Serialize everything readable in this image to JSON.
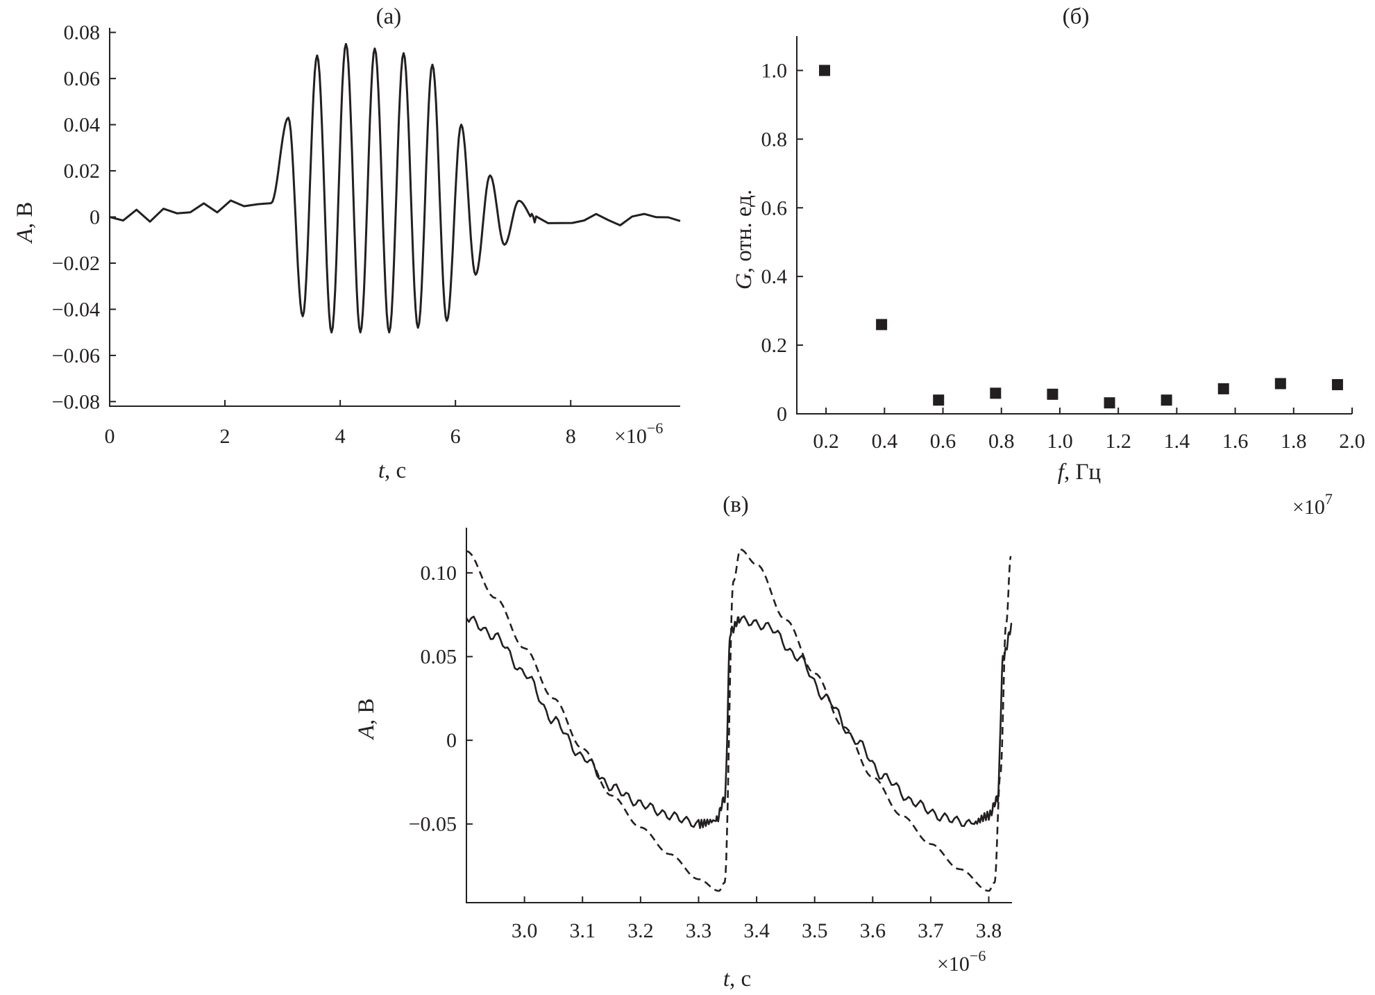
{
  "chart_data": [
    {
      "type": "line",
      "panel": "(a)",
      "title": "(a)",
      "xlabel_italic": "t",
      "xlabel_rest": ", с",
      "ylabel_italic": "A",
      "ylabel_rest": ", В",
      "x_multiplier": "×10",
      "x_multiplier_exp": "−6",
      "xlim": [
        0,
        9.9
      ],
      "ylim": [
        -0.082,
        0.082
      ],
      "x_ticks": [
        0,
        2,
        4,
        6,
        8
      ],
      "x_tick_labels": [
        "0",
        "2",
        "4",
        "6",
        "8"
      ],
      "y_ticks": [
        -0.08,
        -0.06,
        -0.04,
        -0.02,
        0,
        0.02,
        0.04,
        0.06,
        0.08
      ],
      "y_tick_labels": [
        "−0.08",
        "−0.06",
        "−0.04",
        "−0.02",
        "0",
        "0.02",
        "0.04",
        "0.06",
        "0.08"
      ],
      "series": [
        {
          "style": "solid",
          "x": [
            0.0,
            2.8,
            3.1,
            3.35,
            3.6,
            3.85,
            4.1,
            4.35,
            4.6,
            4.85,
            5.1,
            5.35,
            5.6,
            5.85,
            6.1,
            6.35,
            6.6,
            6.85,
            7.1,
            7.4,
            9.9
          ],
          "y": [
            0.0,
            0.006,
            0.043,
            -0.043,
            0.07,
            -0.05,
            0.075,
            -0.05,
            0.073,
            -0.05,
            0.071,
            -0.048,
            0.066,
            -0.045,
            0.04,
            -0.025,
            0.018,
            -0.012,
            0.007,
            -0.002,
            0.0
          ]
        }
      ]
    },
    {
      "type": "scatter",
      "panel": "(б)",
      "title": "(б)",
      "xlabel_italic": "f",
      "xlabel_rest": ", Гц",
      "ylabel_italic": "G",
      "ylabel_rest": ", отн. ед.",
      "x_multiplier": "×10",
      "x_multiplier_exp": "7",
      "xlim": [
        0.1,
        2.0
      ],
      "ylim": [
        0,
        1.1
      ],
      "x_ticks": [
        0.2,
        0.4,
        0.6,
        0.8,
        1.0,
        1.2,
        1.4,
        1.6,
        1.8,
        2.0
      ],
      "x_tick_labels": [
        "0.2",
        "0.4",
        "0.6",
        "0.8",
        "1.0",
        "1.2",
        "1.4",
        "1.6",
        "1.8",
        "2.0"
      ],
      "y_ticks": [
        0,
        0.2,
        0.4,
        0.6,
        0.8,
        1.0
      ],
      "y_tick_labels": [
        "0",
        "0.2",
        "0.4",
        "0.6",
        "0.8",
        "1.0"
      ],
      "series": [
        {
          "style": "square-marker",
          "x": [
            0.195,
            0.39,
            0.585,
            0.78,
            0.975,
            1.17,
            1.365,
            1.56,
            1.755,
            1.95
          ],
          "y": [
            1.0,
            0.26,
            0.04,
            0.06,
            0.057,
            0.032,
            0.04,
            0.073,
            0.088,
            0.085
          ]
        }
      ]
    },
    {
      "type": "line",
      "panel": "(в)",
      "title": "(в)",
      "xlabel_italic": "t",
      "xlabel_rest": ", с",
      "ylabel_italic": "A",
      "ylabel_rest": ", В",
      "x_multiplier": "×10",
      "x_multiplier_exp": "−6",
      "xlim": [
        2.9,
        3.84
      ],
      "ylim": [
        -0.097,
        0.127
      ],
      "x_ticks": [
        3.0,
        3.1,
        3.2,
        3.3,
        3.4,
        3.5,
        3.6,
        3.7,
        3.8
      ],
      "x_tick_labels": [
        "3.0",
        "3.1",
        "3.2",
        "3.3",
        "3.4",
        "3.5",
        "3.6",
        "3.7",
        "3.8"
      ],
      "y_ticks": [
        -0.05,
        0,
        0.05,
        0.1
      ],
      "y_tick_labels": [
        "−0.05",
        "0",
        "0.05",
        "0.10"
      ],
      "series": [
        {
          "style": "solid",
          "x": [
            2.9,
            2.95,
            3.0,
            3.05,
            3.1,
            3.15,
            3.2,
            3.25,
            3.3,
            3.33,
            3.345,
            3.355,
            3.37,
            3.42,
            3.47,
            3.52,
            3.57,
            3.62,
            3.67,
            3.72,
            3.77,
            3.8,
            3.815,
            3.825,
            3.84
          ],
          "y": [
            0.073,
            0.062,
            0.04,
            0.012,
            -0.01,
            -0.028,
            -0.038,
            -0.045,
            -0.05,
            -0.048,
            -0.035,
            0.065,
            0.072,
            0.068,
            0.05,
            0.025,
            0.0,
            -0.022,
            -0.037,
            -0.046,
            -0.05,
            -0.045,
            -0.035,
            0.05,
            0.068
          ]
        },
        {
          "style": "dashed",
          "x": [
            2.9,
            2.95,
            3.0,
            3.05,
            3.1,
            3.15,
            3.2,
            3.25,
            3.3,
            3.335,
            3.345,
            3.36,
            3.372,
            3.4,
            3.45,
            3.5,
            3.55,
            3.6,
            3.65,
            3.7,
            3.75,
            3.8,
            3.81,
            3.82,
            3.83,
            3.838
          ],
          "y": [
            0.113,
            0.085,
            0.055,
            0.025,
            -0.005,
            -0.033,
            -0.052,
            -0.068,
            -0.083,
            -0.09,
            -0.085,
            0.095,
            0.114,
            0.105,
            0.072,
            0.04,
            0.008,
            -0.022,
            -0.045,
            -0.062,
            -0.077,
            -0.09,
            -0.085,
            -0.02,
            0.07,
            0.11
          ]
        }
      ]
    }
  ]
}
